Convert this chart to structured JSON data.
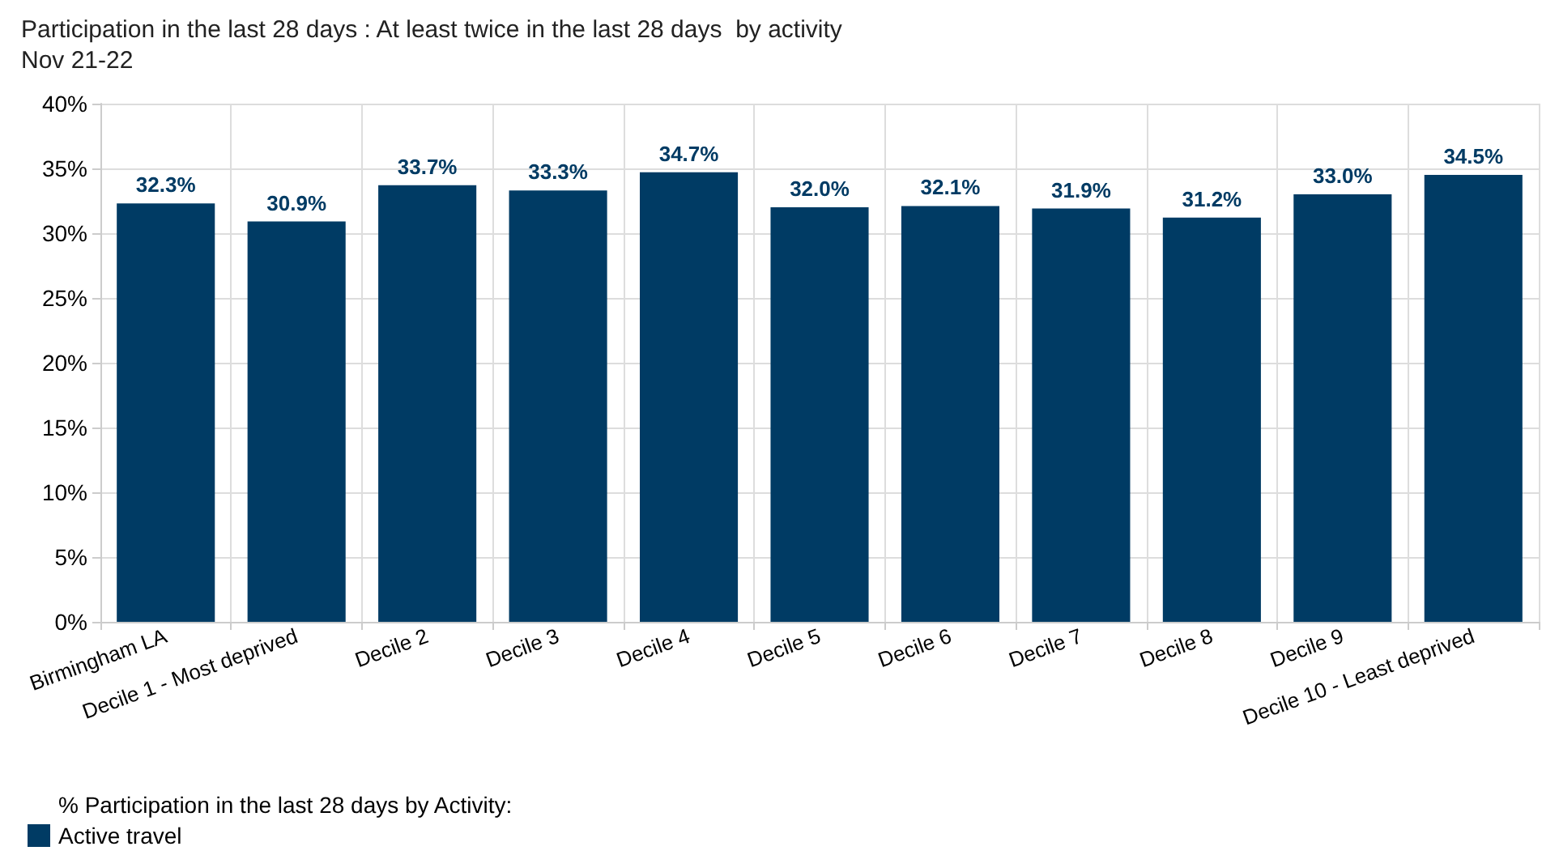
{
  "chart_data": {
    "type": "bar",
    "title": "Participation in the last 28 days : At least twice in the last 28 days  by activity",
    "subtitle": "Nov 21-22",
    "categories": [
      "Birmingham LA",
      "Decile 1 - Most deprived",
      "Decile 2",
      "Decile 3",
      "Decile 4",
      "Decile 5",
      "Decile 6",
      "Decile 7",
      "Decile 8",
      "Decile 9",
      "Decile 10 - Least deprived"
    ],
    "series": [
      {
        "name": "Active travel",
        "color": "#003b64",
        "values": [
          32.3,
          30.9,
          33.7,
          33.3,
          34.7,
          32.0,
          32.1,
          31.9,
          31.2,
          33.0,
          34.5
        ],
        "value_labels": [
          "32.3%",
          "30.9%",
          "33.7%",
          "33.3%",
          "34.7%",
          "32.0%",
          "32.1%",
          "31.9%",
          "31.2%",
          "33.0%",
          "34.5%"
        ]
      }
    ],
    "legend_title": "% Participation in the last 28 days by Activity:",
    "ylim": [
      0,
      40
    ],
    "yticks": [
      {
        "value": 0,
        "label": "0%"
      },
      {
        "value": 5,
        "label": "5%"
      },
      {
        "value": 10,
        "label": "10%"
      },
      {
        "value": 15,
        "label": "15%"
      },
      {
        "value": 20,
        "label": "20%"
      },
      {
        "value": 25,
        "label": "25%"
      },
      {
        "value": 30,
        "label": "30%"
      },
      {
        "value": 35,
        "label": "35%"
      },
      {
        "value": 40,
        "label": "40%"
      }
    ],
    "grid": true,
    "legend": "bottom left"
  }
}
